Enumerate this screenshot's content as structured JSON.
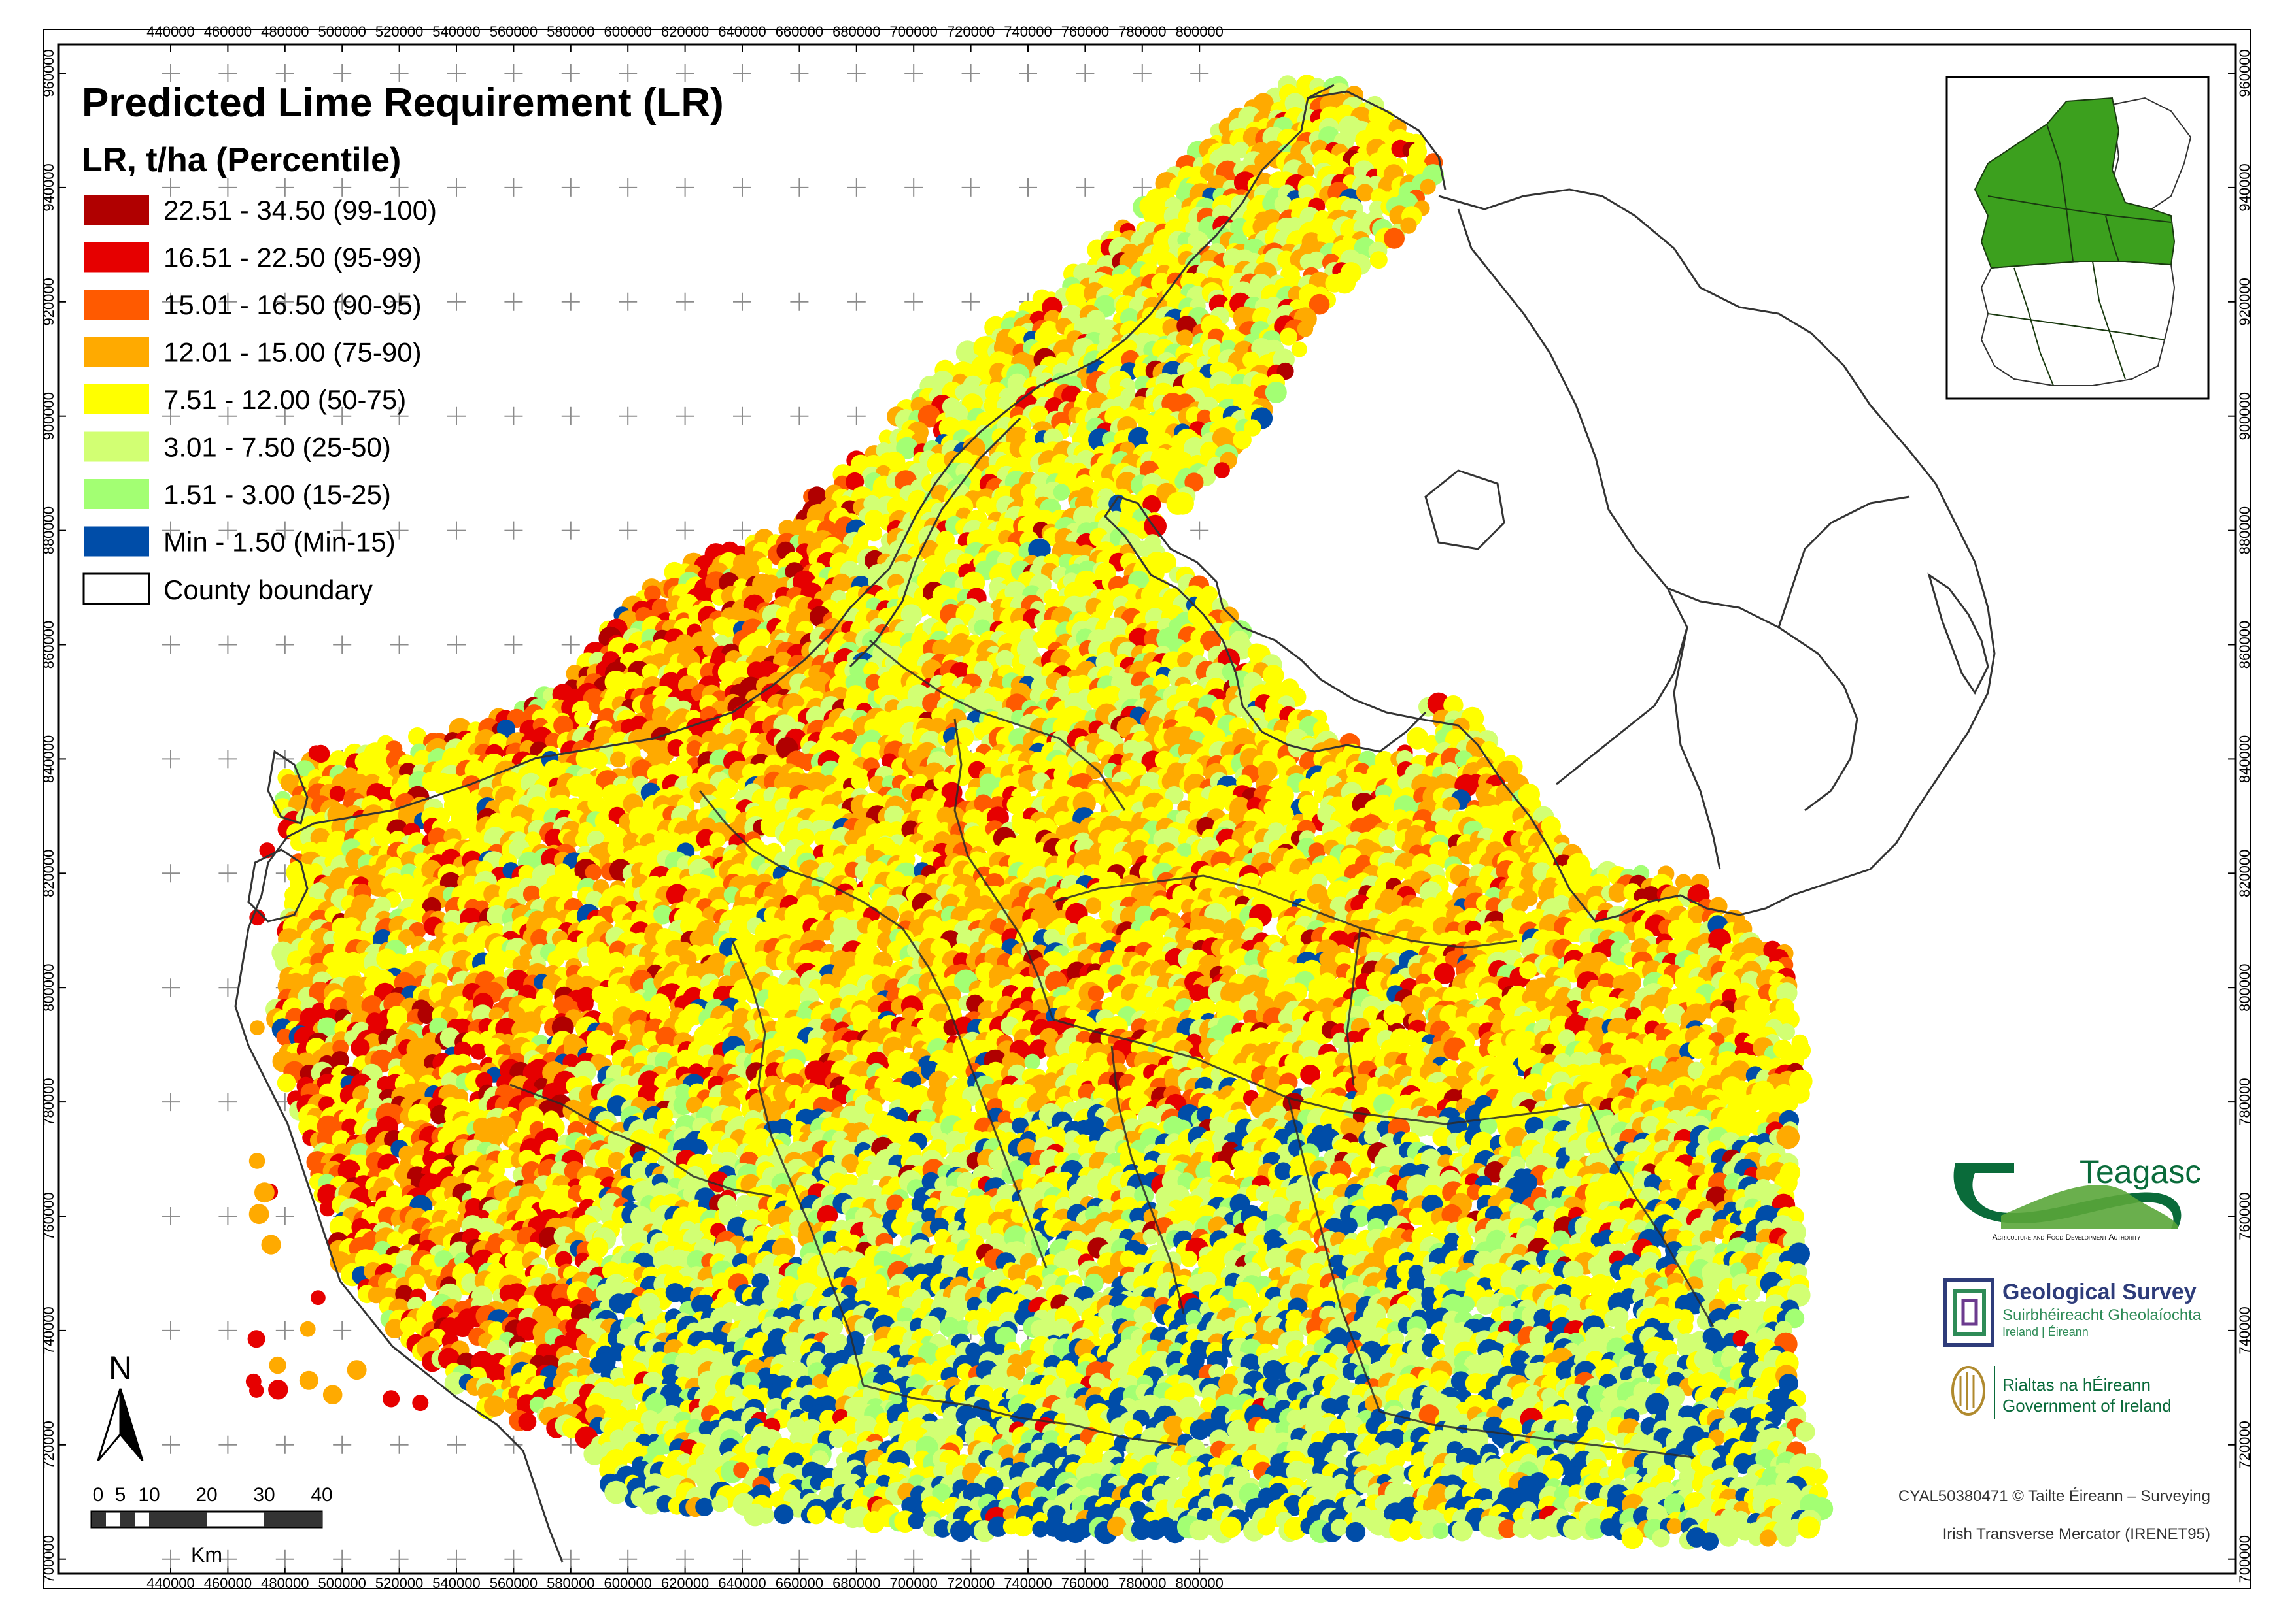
{
  "map": {
    "title": "Predicted Lime Requirement (LR)",
    "legend": {
      "heading": "LR, t/ha (Percentile)",
      "classes": [
        {
          "label": "22.51 - 34.50 (99-100)",
          "color": "#b00000"
        },
        {
          "label": "16.51 - 22.50 (95-99)",
          "color": "#e60000"
        },
        {
          "label": "15.01 - 16.50 (90-95)",
          "color": "#ff5a00"
        },
        {
          "label": "12.01 - 15.00 (75-90)",
          "color": "#ffaa00"
        },
        {
          "label": "7.51 - 12.00 (50-75)",
          "color": "#ffff00"
        },
        {
          "label": "3.01 - 7.50 (25-50)",
          "color": "#d2ff73"
        },
        {
          "label": "1.51 - 3.00 (15-25)",
          "color": "#a3ff73"
        },
        {
          "label": "Min - 1.50 (Min-15)",
          "color": "#004da8"
        }
      ],
      "boundary_label": "County boundary"
    },
    "x_ticks": [
      "440000",
      "460000",
      "480000",
      "500000",
      "520000",
      "540000",
      "560000",
      "580000",
      "600000",
      "620000",
      "640000",
      "660000",
      "680000",
      "700000",
      "720000",
      "740000",
      "760000",
      "780000",
      "800000"
    ],
    "y_ticks": [
      "960000",
      "940000",
      "920000",
      "900000",
      "880000",
      "860000",
      "840000",
      "820000",
      "800000",
      "780000",
      "760000",
      "740000",
      "720000",
      "700000"
    ],
    "north_label": "N",
    "scale_bar": {
      "ticks": [
        "0",
        "5",
        "10",
        "20",
        "30",
        "40"
      ],
      "unit": "Km"
    },
    "logos": {
      "teagasc_name": "Teagasc",
      "teagasc_tagline": "Agriculture and Food Development Authority",
      "gsi_title": "Geological Survey",
      "gsi_irish": "Suirbhéireacht Gheolaíochta",
      "gsi_sub": "Ireland | Éireann",
      "gov_irish": "Rialtas na hÉireann",
      "gov_english": "Government of Ireland"
    },
    "credits": {
      "copyright": "CYAL50380471 © Tailte Éireann – Surveying",
      "projection": "Irish Transverse Mercator (IRENET95)"
    },
    "colors": {
      "frame": "#000000",
      "grid_cross": "#8c8c8c",
      "inset_highlight": "#3ca01e",
      "gsi_green": "#2e8b57",
      "gov_green": "#0a6b3a"
    }
  }
}
